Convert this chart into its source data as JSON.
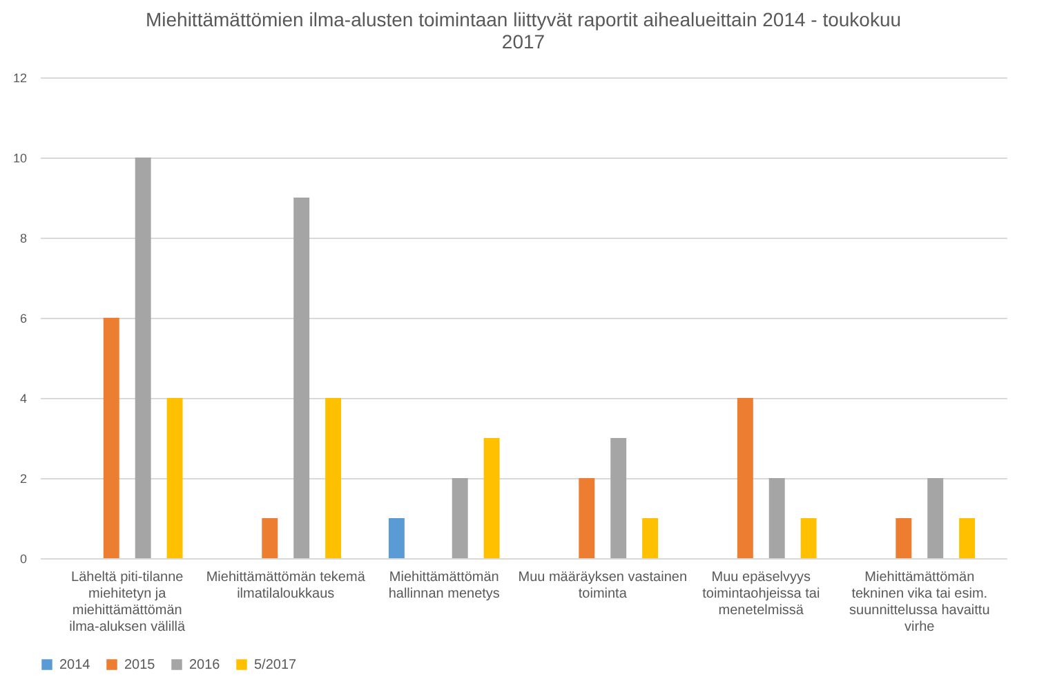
{
  "chart_data": {
    "type": "bar",
    "title": "Miehittämättömien ilma-alusten toimintaan liittyvät raportit aihealueittain 2014 - toukokuu 2017",
    "categories": [
      "Läheltä piti-tilanne miehitetyn ja miehittämättömän ilma-aluksen välillä",
      "Miehittämättömän tekemä ilmatilaloukkaus",
      "Miehittämättömän hallinnan menetys",
      "Muu määräyksen vastainen toiminta",
      "Muu epäselvyys toimintaohjeissa tai menetelmissä",
      "Miehittämättömän tekninen vika tai esim. suunnittelussa havaittu virhe"
    ],
    "series": [
      {
        "name": "2014",
        "color": "#5b9bd5",
        "values": [
          0,
          0,
          1,
          0,
          0,
          0
        ]
      },
      {
        "name": "2015",
        "color": "#ed7d31",
        "values": [
          6,
          1,
          0,
          2,
          4,
          1
        ]
      },
      {
        "name": "2016",
        "color": "#a5a5a5",
        "values": [
          10,
          9,
          2,
          3,
          2,
          2
        ]
      },
      {
        "name": "5/2017",
        "color": "#ffc000",
        "values": [
          4,
          4,
          3,
          1,
          1,
          1
        ]
      }
    ],
    "ylim": [
      0,
      12
    ],
    "yticks": [
      0,
      2,
      4,
      6,
      8,
      10,
      12
    ],
    "grid": "y",
    "legend": "bottom"
  }
}
